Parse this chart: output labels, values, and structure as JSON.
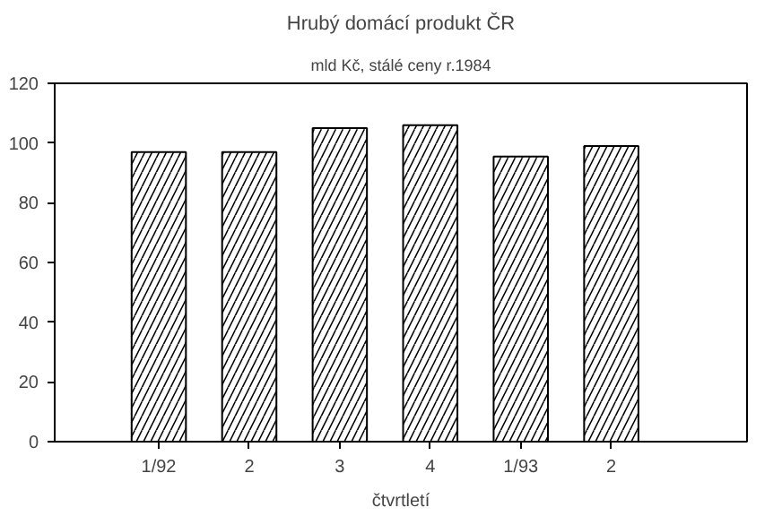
{
  "chart_data": {
    "type": "bar",
    "title": "Hrubý domácí produkt ČR",
    "subtitle": "mld Kč, stálé ceny r.1984",
    "xlabel": "čtvrtletí",
    "categories": [
      "1/92",
      "2",
      "3",
      "4",
      "1/93",
      "2"
    ],
    "values": [
      97,
      97,
      105,
      106,
      95.5,
      99
    ],
    "color": "#000000",
    "ylim": [
      0,
      120
    ],
    "yticks": [
      0,
      20,
      40,
      60,
      80,
      100,
      120
    ],
    "grid": false
  }
}
